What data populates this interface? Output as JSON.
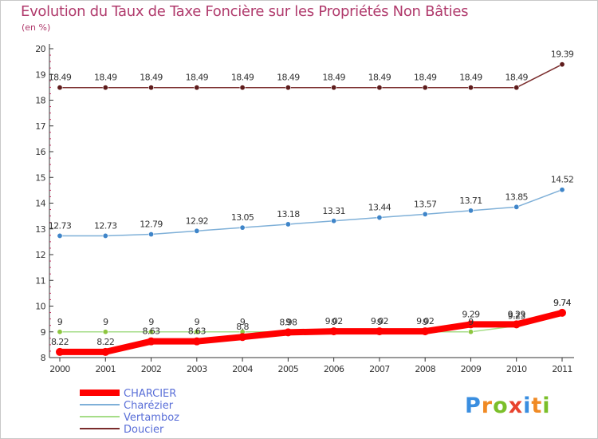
{
  "title": "Evolution du Taux de Taxe Foncière sur les Propriétés Non Bâties",
  "unit_label": "(en %)",
  "brand": {
    "letters": [
      "P",
      "r",
      "o",
      "x",
      "i",
      "t",
      "i"
    ],
    "colors": [
      "#3a8ee0",
      "#f08a24",
      "#7bbf2a",
      "#e8432e",
      "#3a8ee0",
      "#f08a24",
      "#7bbf2a"
    ]
  },
  "chart_data": {
    "type": "line",
    "title": "Evolution du Taux de Taxe Foncière sur les Propriétés Non Bâties",
    "ylabel": "(en %)",
    "xlabel": "",
    "x": [
      "2000",
      "2001",
      "2002",
      "2003",
      "2004",
      "2005",
      "2006",
      "2007",
      "2008",
      "2009",
      "2010",
      "2011"
    ],
    "ylim": [
      8,
      20
    ],
    "yticks": [
      8,
      9,
      10,
      11,
      12,
      13,
      14,
      15,
      16,
      17,
      18,
      19,
      20
    ],
    "grid": false,
    "legend": "bottom-left",
    "series": [
      {
        "name": "Doucier",
        "color": "#7a2c2c",
        "marker": "#5e1c1c",
        "width": "thin",
        "values": [
          18.49,
          18.49,
          18.49,
          18.49,
          18.49,
          18.49,
          18.49,
          18.49,
          18.49,
          18.49,
          18.49,
          19.39
        ],
        "labels": [
          "18.49",
          "18.49",
          "18.49",
          "18.49",
          "18.49",
          "18.49",
          "18.49",
          "18.49",
          "18.49",
          "18.49",
          "18.49",
          "19.39"
        ]
      },
      {
        "name": "Charézier",
        "color": "#7fb0d8",
        "marker": "#3f85c9",
        "width": "thin",
        "values": [
          12.73,
          12.73,
          12.79,
          12.92,
          13.05,
          13.18,
          13.31,
          13.44,
          13.57,
          13.71,
          13.85,
          14.52
        ],
        "labels": [
          "12.73",
          "12.73",
          "12.79",
          "12.92",
          "13.05",
          "13.18",
          "13.31",
          "13.44",
          "13.57",
          "13.71",
          "13.85",
          "14.52"
        ]
      },
      {
        "name": "Vertamboz",
        "color": "#a6dd88",
        "marker": "#8dc63f",
        "width": "thin",
        "values": [
          9,
          9,
          9,
          9,
          9,
          9,
          9,
          9,
          9,
          9,
          9.23,
          9.74
        ],
        "labels": [
          "9",
          "9",
          "9",
          "9",
          "9",
          "9",
          "9",
          "9",
          "9",
          "9",
          "9.23",
          "9.74"
        ]
      },
      {
        "name": "CHARCIER",
        "color": "#ff0000",
        "marker": "#ff0000",
        "width": "thick",
        "values": [
          8.22,
          8.22,
          8.63,
          8.63,
          8.8,
          8.98,
          9.02,
          9.02,
          9.02,
          9.29,
          9.29,
          9.74
        ],
        "labels": [
          "8.22",
          "8.22",
          "8.63",
          "8.63",
          "8.8",
          "8.98",
          "9.02",
          "9.02",
          "9.02",
          "9.29",
          "9.29",
          "9.74"
        ]
      }
    ]
  }
}
